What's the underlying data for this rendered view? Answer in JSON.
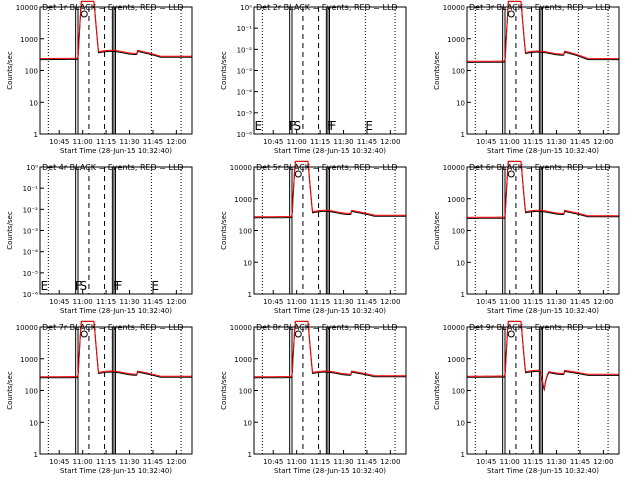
{
  "page": {
    "x_axis_title": "Start Time (28-Jun-15 10:32:40)",
    "y_axis_title": "Counts/sec"
  },
  "chart_data": [
    {
      "type": "line",
      "title": "Det 1r BLACK = Events, RED = LLD",
      "detector": "1r",
      "ylim": [
        1,
        10000
      ],
      "yscale": "log",
      "ytick_labels": [
        "1",
        "10",
        "100",
        "1000",
        "10000"
      ],
      "xtick_labels": [
        "10:45",
        "11:00",
        "11:15",
        "11:30",
        "11:45",
        "12:00"
      ],
      "xlim": [
        "10:32:40",
        "12:10"
      ],
      "letters": [],
      "has_data": true,
      "baseline": {
        "pre": 220,
        "plateau": 400,
        "post": 260
      },
      "series": [
        {
          "name": "BLACK = Events",
          "color": "#000000"
        },
        {
          "name": "RED = LLD",
          "color": "#ff0000"
        }
      ]
    },
    {
      "type": "line",
      "title": "Det 2r BLACK = Events, RED = LLD",
      "detector": "2r",
      "ylim": [
        1,
        1e-06
      ],
      "yscale": "log",
      "ytick_labels": [
        "10⁻⁶",
        "10⁻⁵",
        "10⁻⁴",
        "10⁻³",
        "10⁻²",
        "10⁻¹",
        "10⁰"
      ],
      "xtick_labels": [
        "10:45",
        "11:00",
        "11:15",
        "11:30",
        "11:45",
        "12:00"
      ],
      "xlim": [
        "10:32:40",
        "12:10"
      ],
      "letters": [
        "E",
        "F",
        "S",
        "F",
        "F",
        "E"
      ],
      "has_data": false,
      "series": [
        {
          "name": "BLACK = Events",
          "color": "#000000"
        },
        {
          "name": "RED = LLD",
          "color": "#ff0000"
        }
      ]
    },
    {
      "type": "line",
      "title": "Det 3r BLACK = Events, RED = LLD",
      "detector": "3r",
      "ylim": [
        1,
        10000
      ],
      "yscale": "log",
      "ytick_labels": [
        "1",
        "10",
        "100",
        "1000",
        "10000"
      ],
      "xtick_labels": [
        "10:45",
        "11:00",
        "11:15",
        "11:30",
        "11:45",
        "12:00"
      ],
      "xlim": [
        "10:32:40",
        "12:10"
      ],
      "letters": [],
      "has_data": true,
      "baseline": {
        "pre": 180,
        "plateau": 380,
        "post": 220
      },
      "series": [
        {
          "name": "BLACK = Events",
          "color": "#000000"
        },
        {
          "name": "RED = LLD",
          "color": "#ff0000"
        }
      ]
    },
    {
      "type": "line",
      "title": "Det 4r BLACK = Events, RED = LLD",
      "detector": "4r",
      "ylim": [
        1,
        1e-06
      ],
      "yscale": "log",
      "ytick_labels": [
        "10⁻⁶",
        "10⁻⁵",
        "10⁻⁴",
        "10⁻³",
        "10⁻²",
        "10⁻¹",
        "10⁰"
      ],
      "xtick_labels": [
        "10:45",
        "11:00",
        "11:15",
        "11:30",
        "11:45",
        "12:00"
      ],
      "xlim": [
        "10:32:40",
        "12:10"
      ],
      "letters": [
        "E",
        "F",
        "S",
        "F",
        "F",
        "E"
      ],
      "has_data": false,
      "series": [
        {
          "name": "BLACK = Events",
          "color": "#000000"
        },
        {
          "name": "RED = LLD",
          "color": "#ff0000"
        }
      ]
    },
    {
      "type": "line",
      "title": "Det 5r BLACK = Events, RED = LLD",
      "detector": "5r",
      "ylim": [
        1,
        10000
      ],
      "yscale": "log",
      "ytick_labels": [
        "1",
        "10",
        "100",
        "1000",
        "10000"
      ],
      "xtick_labels": [
        "10:45",
        "11:00",
        "11:15",
        "11:30",
        "11:45",
        "12:00"
      ],
      "xlim": [
        "10:32:40",
        "12:10"
      ],
      "letters": [],
      "has_data": true,
      "baseline": {
        "pre": 250,
        "plateau": 400,
        "post": 280
      },
      "series": [
        {
          "name": "BLACK = Events",
          "color": "#000000"
        },
        {
          "name": "RED = LLD",
          "color": "#ff0000"
        }
      ]
    },
    {
      "type": "line",
      "title": "Det 6r BLACK = Events, RED = LLD",
      "detector": "6r",
      "ylim": [
        1,
        10000
      ],
      "yscale": "log",
      "ytick_labels": [
        "1",
        "10",
        "100",
        "1000",
        "10000"
      ],
      "xtick_labels": [
        "10:45",
        "11:00",
        "11:15",
        "11:30",
        "11:45",
        "12:00"
      ],
      "xlim": [
        "10:32:40",
        "12:10"
      ],
      "letters": [],
      "has_data": true,
      "baseline": {
        "pre": 240,
        "plateau": 400,
        "post": 270
      },
      "series": [
        {
          "name": "BLACK = Events",
          "color": "#000000"
        },
        {
          "name": "RED = LLD",
          "color": "#ff0000"
        }
      ]
    },
    {
      "type": "line",
      "title": "Det 7r BLACK = Events, RED = LLD",
      "detector": "7r",
      "ylim": [
        1,
        10000
      ],
      "yscale": "log",
      "ytick_labels": [
        "1",
        "10",
        "100",
        "1000",
        "10000"
      ],
      "xtick_labels": [
        "10:45",
        "11:00",
        "11:15",
        "11:30",
        "11:45",
        "12:00"
      ],
      "xlim": [
        "10:32:40",
        "12:10"
      ],
      "letters": [],
      "has_data": true,
      "baseline": {
        "pre": 250,
        "plateau": 380,
        "post": 260
      },
      "series": [
        {
          "name": "BLACK = Events",
          "color": "#000000"
        },
        {
          "name": "RED = LLD",
          "color": "#ff0000"
        }
      ]
    },
    {
      "type": "line",
      "title": "Det 8r BLACK = Events, RED = LLD",
      "detector": "8r",
      "ylim": [
        1,
        10000
      ],
      "yscale": "log",
      "ytick_labels": [
        "1",
        "10",
        "100",
        "1000",
        "10000"
      ],
      "xtick_labels": [
        "10:45",
        "11:00",
        "11:15",
        "11:30",
        "11:45",
        "12:00"
      ],
      "xlim": [
        "10:32:40",
        "12:10"
      ],
      "letters": [],
      "has_data": true,
      "baseline": {
        "pre": 250,
        "plateau": 380,
        "post": 270
      },
      "series": [
        {
          "name": "BLACK = Events",
          "color": "#000000"
        },
        {
          "name": "RED = LLD",
          "color": "#ff0000"
        }
      ]
    },
    {
      "type": "line",
      "title": "Det 9r BLACK = Events, RED = LLD",
      "detector": "9r",
      "ylim": [
        1,
        10000
      ],
      "yscale": "log",
      "ytick_labels": [
        "1",
        "10",
        "100",
        "1000",
        "10000"
      ],
      "xtick_labels": [
        "10:45",
        "11:00",
        "11:15",
        "11:30",
        "11:45",
        "12:00"
      ],
      "xlim": [
        "10:32:40",
        "12:10"
      ],
      "letters": [],
      "has_data": true,
      "baseline": {
        "pre": 260,
        "plateau": 400,
        "post": 300
      },
      "dip": {
        "time": "11:22",
        "value": 90
      },
      "series": [
        {
          "name": "BLACK = Events",
          "color": "#000000"
        },
        {
          "name": "RED = LLD",
          "color": "#ff0000"
        }
      ]
    }
  ]
}
